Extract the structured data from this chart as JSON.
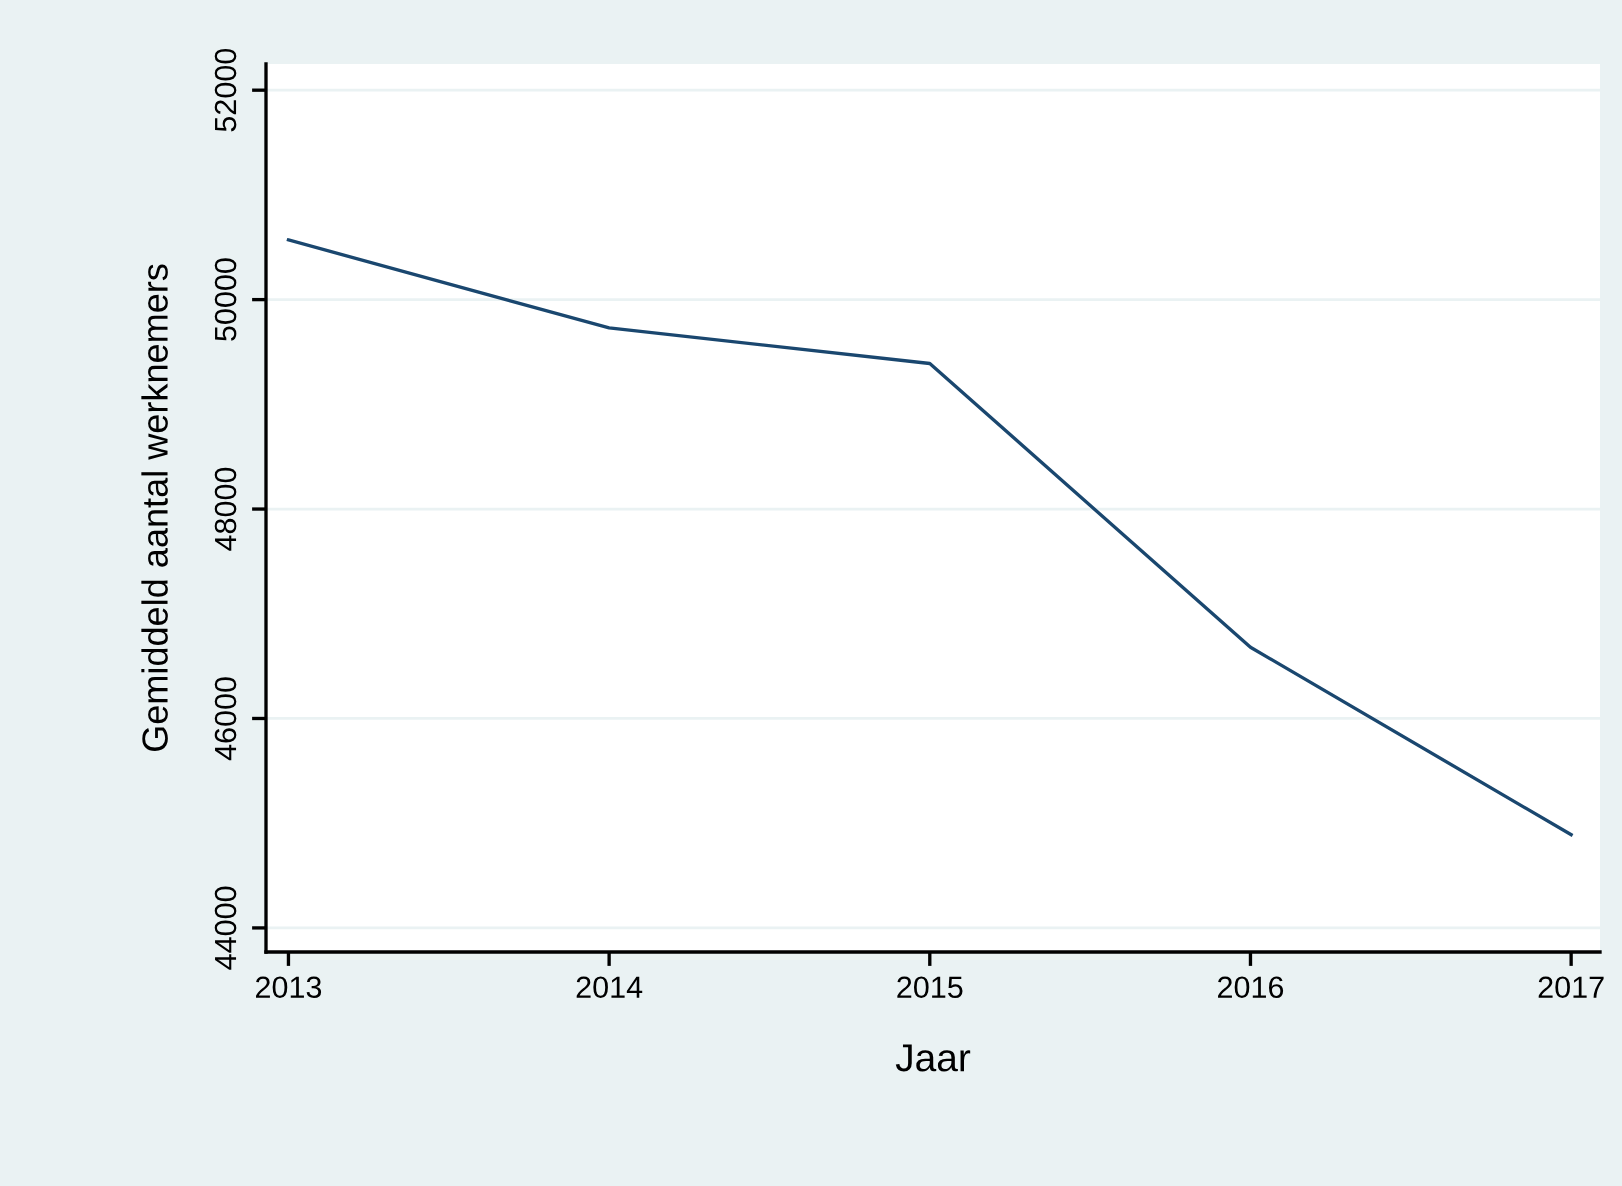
{
  "chart_data": {
    "type": "line",
    "xlabel": "Jaar",
    "ylabel": "Gemiddeld aantal werknemers",
    "x": [
      2013,
      2014,
      2015,
      2016,
      2017
    ],
    "series": [
      {
        "color": "#1a476f",
        "values": [
          50570,
          49730,
          49390,
          46680,
          44890
        ]
      }
    ],
    "xlim": [
      2012.93,
      2017.09
    ],
    "xticks": [
      2013,
      2014,
      2015,
      2016,
      2017
    ],
    "ylim": [
      43770,
      52250
    ],
    "yticks": [
      44000,
      46000,
      48000,
      50000,
      52000
    ],
    "grid": "y",
    "legend": false,
    "marker": "none",
    "line_style": "solid"
  }
}
